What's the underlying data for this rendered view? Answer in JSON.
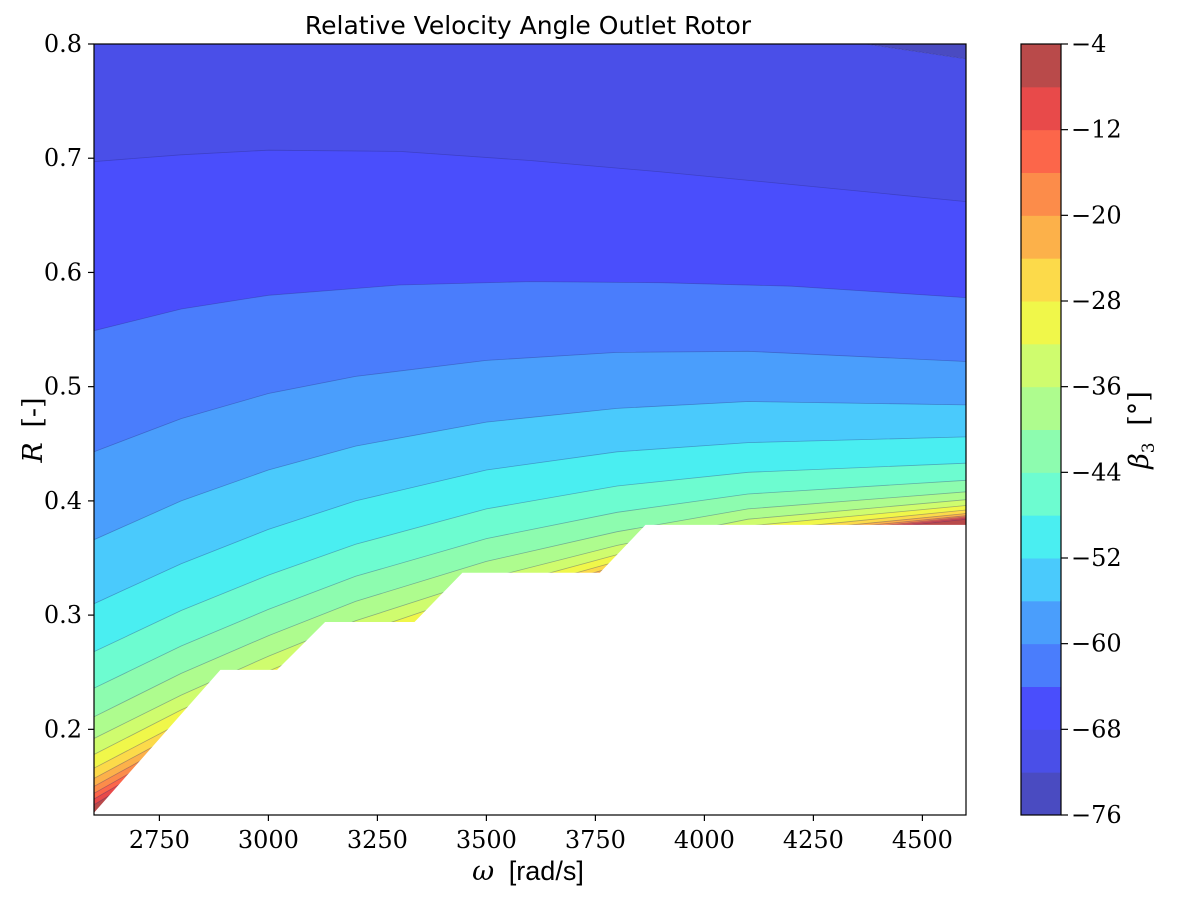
{
  "chart_data": {
    "type": "contourf",
    "title": "Relative Velocity Angle Outlet Rotor",
    "xlabel": {
      "symbol": "ω",
      "unit": "[rad/s]"
    },
    "ylabel": {
      "symbol": "R",
      "unit": "[-]"
    },
    "xlim": [
      2600,
      4600
    ],
    "ylim": [
      0.125,
      0.8
    ],
    "xticks": [
      2750,
      3000,
      3250,
      3500,
      3750,
      4000,
      4250,
      4500
    ],
    "xtick_labels": [
      "2750",
      "3000",
      "3250",
      "3500",
      "3750",
      "4000",
      "4250",
      "4500"
    ],
    "yticks": [
      0.2,
      0.3,
      0.4,
      0.5,
      0.6,
      0.7,
      0.8
    ],
    "ytick_labels": [
      "0.2",
      "0.3",
      "0.4",
      "0.5",
      "0.6",
      "0.7",
      "0.8"
    ],
    "colorbar": {
      "label": {
        "symbol": "β",
        "subscript": "3",
        "unit": "[°]"
      },
      "range": [
        -76,
        -4
      ],
      "ticks": [
        -76,
        -68,
        -60,
        -52,
        -44,
        -36,
        -28,
        -20,
        -12,
        -4
      ],
      "tick_labels": [
        "−76",
        "−68",
        "−60",
        "−52",
        "−44",
        "−36",
        "−28",
        "−20",
        "−12",
        "−4"
      ],
      "levels": [
        -76,
        -72,
        -68,
        -64,
        -60,
        -56,
        -52,
        -48,
        -44,
        -40,
        -36,
        -32,
        -28,
        -24,
        -20,
        -16,
        -12,
        -8,
        -4
      ],
      "colors": [
        "#4A4BC1",
        "#4A4FE8",
        "#4A4EFC",
        "#4A7DFC",
        "#4A9EFC",
        "#4ACAFC",
        "#4AEEF1",
        "#6DFCD0",
        "#8DFCAF",
        "#AEFC8E",
        "#CFFC6E",
        "#F0F74A",
        "#FCDA4A",
        "#FCB14A",
        "#FC8C4A",
        "#FC664A",
        "#E84A4A",
        "#B94A4A"
      ]
    },
    "boundary_lines": [
      {
        "level": -72,
        "points": [
          [
            4370,
            0.8
          ],
          [
            4600,
            0.787
          ]
        ]
      },
      {
        "level": -68,
        "points": [
          [
            2600,
            0.697
          ],
          [
            2800,
            0.703
          ],
          [
            3000,
            0.707
          ],
          [
            3300,
            0.706
          ],
          [
            3600,
            0.698
          ],
          [
            3900,
            0.688
          ],
          [
            4200,
            0.677
          ],
          [
            4600,
            0.662
          ]
        ]
      },
      {
        "level": -64,
        "points": [
          [
            2600,
            0.549
          ],
          [
            2800,
            0.568
          ],
          [
            3000,
            0.58
          ],
          [
            3300,
            0.589
          ],
          [
            3600,
            0.592
          ],
          [
            3900,
            0.591
          ],
          [
            4200,
            0.588
          ],
          [
            4600,
            0.578
          ]
        ]
      },
      {
        "level": -60,
        "points": [
          [
            2600,
            0.443
          ],
          [
            2800,
            0.472
          ],
          [
            3000,
            0.494
          ],
          [
            3200,
            0.509
          ],
          [
            3500,
            0.523
          ],
          [
            3800,
            0.53
          ],
          [
            4100,
            0.531
          ],
          [
            4600,
            0.522
          ]
        ]
      },
      {
        "level": -56,
        "points": [
          [
            2600,
            0.366
          ],
          [
            2800,
            0.4
          ],
          [
            3000,
            0.427
          ],
          [
            3200,
            0.448
          ],
          [
            3500,
            0.469
          ],
          [
            3800,
            0.481
          ],
          [
            4100,
            0.487
          ],
          [
            4600,
            0.484
          ]
        ]
      },
      {
        "level": -52,
        "points": [
          [
            2600,
            0.31
          ],
          [
            2800,
            0.345
          ],
          [
            3000,
            0.375
          ],
          [
            3200,
            0.4
          ],
          [
            3500,
            0.427
          ],
          [
            3800,
            0.443
          ],
          [
            4100,
            0.451
          ],
          [
            4600,
            0.456
          ]
        ]
      },
      {
        "level": -48,
        "points": [
          [
            2600,
            0.268
          ],
          [
            2800,
            0.304
          ],
          [
            3000,
            0.335
          ],
          [
            3200,
            0.362
          ],
          [
            3500,
            0.393
          ],
          [
            3800,
            0.413
          ],
          [
            4100,
            0.425
          ],
          [
            4600,
            0.433
          ]
        ]
      },
      {
        "level": -44,
        "points": [
          [
            2600,
            0.236
          ],
          [
            2800,
            0.273
          ],
          [
            3000,
            0.305
          ],
          [
            3200,
            0.334
          ],
          [
            3500,
            0.367
          ],
          [
            3800,
            0.39
          ],
          [
            4100,
            0.406
          ],
          [
            4600,
            0.418
          ]
        ]
      },
      {
        "level": -40,
        "points": [
          [
            2600,
            0.211
          ],
          [
            2800,
            0.249
          ],
          [
            3000,
            0.282
          ],
          [
            3200,
            0.312
          ],
          [
            3500,
            0.347
          ],
          [
            3800,
            0.373
          ],
          [
            4100,
            0.393
          ],
          [
            4600,
            0.408
          ]
        ]
      },
      {
        "level": -36,
        "points": [
          [
            2600,
            0.192
          ],
          [
            2800,
            0.23
          ],
          [
            3000,
            0.264
          ],
          [
            3200,
            0.295
          ],
          [
            3500,
            0.332
          ],
          [
            3800,
            0.361
          ],
          [
            4100,
            0.384
          ],
          [
            4600,
            0.401
          ]
        ]
      },
      {
        "level": -32,
        "points": [
          [
            2600,
            0.178
          ],
          [
            2800,
            0.217
          ],
          [
            3000,
            0.251
          ],
          [
            3200,
            0.283
          ],
          [
            3500,
            0.322
          ],
          [
            3800,
            0.353
          ],
          [
            4100,
            0.378
          ],
          [
            4600,
            0.396
          ]
        ]
      },
      {
        "level": -28,
        "points": [
          [
            2600,
            0.166
          ],
          [
            2800,
            0.206
          ],
          [
            3000,
            0.241
          ],
          [
            3200,
            0.274
          ],
          [
            3500,
            0.315
          ],
          [
            3800,
            0.347
          ],
          [
            4100,
            0.373
          ],
          [
            4600,
            0.392
          ]
        ]
      },
      {
        "level": -24,
        "points": [
          [
            2600,
            0.157
          ],
          [
            2800,
            0.198
          ],
          [
            3000,
            0.234
          ],
          [
            3200,
            0.268
          ],
          [
            3500,
            0.31
          ],
          [
            3800,
            0.343
          ],
          [
            4100,
            0.37
          ],
          [
            4600,
            0.389
          ]
        ]
      },
      {
        "level": -20,
        "points": [
          [
            2600,
            0.15
          ],
          [
            2800,
            0.192
          ],
          [
            3000,
            0.229
          ],
          [
            3200,
            0.264
          ],
          [
            3500,
            0.306
          ],
          [
            3800,
            0.34
          ],
          [
            4100,
            0.368
          ],
          [
            4600,
            0.387
          ]
        ]
      },
      {
        "level": -16,
        "points": [
          [
            2600,
            0.144
          ],
          [
            2800,
            0.187
          ],
          [
            3000,
            0.225
          ],
          [
            3200,
            0.261
          ],
          [
            3500,
            0.303
          ],
          [
            3800,
            0.338
          ],
          [
            4100,
            0.366
          ],
          [
            4600,
            0.386
          ]
        ]
      },
      {
        "level": -12,
        "points": [
          [
            2600,
            0.139
          ],
          [
            2800,
            0.183
          ],
          [
            3000,
            0.222
          ],
          [
            3200,
            0.258
          ],
          [
            3500,
            0.301
          ],
          [
            3800,
            0.336
          ],
          [
            4100,
            0.365
          ],
          [
            4600,
            0.385
          ]
        ]
      },
      {
        "level": -8,
        "points": [
          [
            2600,
            0.134
          ],
          [
            2800,
            0.18
          ],
          [
            3000,
            0.22
          ],
          [
            3200,
            0.256
          ],
          [
            3500,
            0.299
          ],
          [
            3800,
            0.335
          ],
          [
            4100,
            0.364
          ],
          [
            4600,
            0.384
          ]
        ]
      }
    ],
    "masked_region": [
      [
        2600,
        0.125
      ],
      [
        2600,
        0.127
      ],
      [
        2890,
        0.252
      ],
      [
        3020,
        0.252
      ],
      [
        3130,
        0.294
      ],
      [
        3335,
        0.294
      ],
      [
        3445,
        0.337
      ],
      [
        3760,
        0.337
      ],
      [
        3865,
        0.379
      ],
      [
        4600,
        0.379
      ],
      [
        4600,
        0.125
      ]
    ]
  }
}
